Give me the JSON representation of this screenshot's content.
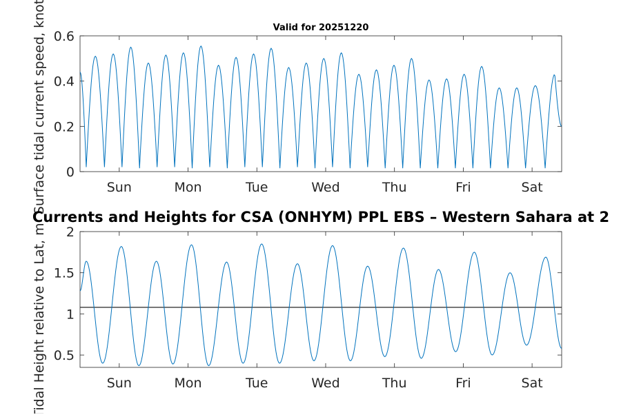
{
  "charts": {
    "valid_title": "Valid for 20251220",
    "main_title": "Currents and Heights for CSA (ONHYM) PPL EBS  – Western Sahara at 2",
    "colors": {
      "series": "#0072BD",
      "reference": "#262626",
      "axes": "#262626"
    }
  },
  "chart_data": [
    {
      "type": "line",
      "title": "Valid for 20251220",
      "ylabel": "Surface tidal current speed, knots",
      "xlabel": "",
      "x_unit": "days",
      "xlim": [
        0,
        7
      ],
      "ylim": [
        0,
        0.6
      ],
      "yticks": [
        0,
        0.2,
        0.4,
        0.6
      ],
      "ytick_labels": [
        "0",
        "0.2",
        "0.4",
        "0.6"
      ],
      "xticks": [
        0.57,
        1.57,
        2.57,
        3.57,
        4.57,
        5.57,
        6.57
      ],
      "xtick_labels": [
        "Sun",
        "Mon",
        "Tue",
        "Wed",
        "Thu",
        "Fri",
        "Sat"
      ],
      "series": [
        {
          "name": "Surface tidal current speed",
          "peaks": [
            {
              "t": 0.225,
              "v": 0.51
            },
            {
              "t": 0.48,
              "v": 0.52
            },
            {
              "t": 0.735,
              "v": 0.55
            },
            {
              "t": 0.99,
              "v": 0.48
            },
            {
              "t": 1.245,
              "v": 0.515
            },
            {
              "t": 1.5,
              "v": 0.525
            },
            {
              "t": 1.755,
              "v": 0.555
            },
            {
              "t": 2.01,
              "v": 0.47
            },
            {
              "t": 2.265,
              "v": 0.505
            },
            {
              "t": 2.52,
              "v": 0.52
            },
            {
              "t": 2.775,
              "v": 0.545
            },
            {
              "t": 3.03,
              "v": 0.46
            },
            {
              "t": 3.285,
              "v": 0.48
            },
            {
              "t": 3.54,
              "v": 0.5
            },
            {
              "t": 3.795,
              "v": 0.525
            },
            {
              "t": 4.05,
              "v": 0.43
            },
            {
              "t": 4.305,
              "v": 0.45
            },
            {
              "t": 4.56,
              "v": 0.47
            },
            {
              "t": 4.815,
              "v": 0.5
            },
            {
              "t": 5.07,
              "v": 0.405
            },
            {
              "t": 5.325,
              "v": 0.41
            },
            {
              "t": 5.58,
              "v": 0.43
            },
            {
              "t": 5.835,
              "v": 0.465
            },
            {
              "t": 6.09,
              "v": 0.37
            },
            {
              "t": 6.345,
              "v": 0.37
            },
            {
              "t": 6.6,
              "v": 0.38
            },
            {
              "t": 6.9,
              "v": 0.43
            }
          ],
          "troughs": [
            {
              "t": 0.09,
              "v": 0.02
            },
            {
              "t": 0.355,
              "v": 0.02
            },
            {
              "t": 0.61,
              "v": 0.015
            },
            {
              "t": 0.865,
              "v": 0.02
            },
            {
              "t": 1.12,
              "v": 0.02
            },
            {
              "t": 1.375,
              "v": 0.015
            },
            {
              "t": 1.63,
              "v": 0.02
            },
            {
              "t": 1.885,
              "v": 0.015
            },
            {
              "t": 2.14,
              "v": 0.02
            },
            {
              "t": 2.395,
              "v": 0.02
            },
            {
              "t": 2.65,
              "v": 0.015
            },
            {
              "t": 2.905,
              "v": 0.02
            },
            {
              "t": 3.16,
              "v": 0.015
            },
            {
              "t": 3.415,
              "v": 0.02
            },
            {
              "t": 3.67,
              "v": 0.015
            },
            {
              "t": 3.925,
              "v": 0.02
            },
            {
              "t": 4.18,
              "v": 0.015
            },
            {
              "t": 4.435,
              "v": 0.015
            },
            {
              "t": 4.69,
              "v": 0.015
            },
            {
              "t": 4.945,
              "v": 0.015
            },
            {
              "t": 5.2,
              "v": 0.015
            },
            {
              "t": 5.455,
              "v": 0.015
            },
            {
              "t": 5.71,
              "v": 0.015
            },
            {
              "t": 5.965,
              "v": 0.015
            },
            {
              "t": 6.22,
              "v": 0.015
            },
            {
              "t": 6.475,
              "v": 0.015
            },
            {
              "t": 6.76,
              "v": 0.015
            }
          ],
          "start_value": 0.44,
          "end_value": 0.2
        }
      ]
    },
    {
      "type": "line",
      "title": "Currents and Heights for CSA (ONHYM) PPL EBS  – Western Sahara at 2",
      "ylabel": "Tidal Height relative to Lat, m",
      "xlabel": "",
      "x_unit": "days",
      "xlim": [
        0,
        7
      ],
      "ylim": [
        0.35,
        2.0
      ],
      "yticks": [
        0.5,
        1.0,
        1.5,
        2.0
      ],
      "ytick_labels": [
        "0.5",
        "1",
        "1.5",
        "2"
      ],
      "xticks": [
        0.57,
        1.57,
        2.57,
        3.57,
        4.57,
        5.57,
        6.57
      ],
      "xtick_labels": [
        "Sun",
        "Mon",
        "Tue",
        "Wed",
        "Thu",
        "Fri",
        "Sat"
      ],
      "reference_line": 1.08,
      "series": [
        {
          "name": "Tidal height",
          "extrema": [
            {
              "t": 0.0,
              "v": 1.28
            },
            {
              "t": 0.09,
              "v": 1.64
            },
            {
              "t": 0.33,
              "v": 0.4
            },
            {
              "t": 0.6,
              "v": 1.82
            },
            {
              "t": 0.855,
              "v": 0.37
            },
            {
              "t": 1.11,
              "v": 1.64
            },
            {
              "t": 1.35,
              "v": 0.39
            },
            {
              "t": 1.62,
              "v": 1.84
            },
            {
              "t": 1.87,
              "v": 0.37
            },
            {
              "t": 2.13,
              "v": 1.63
            },
            {
              "t": 2.37,
              "v": 0.4
            },
            {
              "t": 2.64,
              "v": 1.85
            },
            {
              "t": 2.9,
              "v": 0.4
            },
            {
              "t": 3.16,
              "v": 1.61
            },
            {
              "t": 3.4,
              "v": 0.43
            },
            {
              "t": 3.67,
              "v": 1.83
            },
            {
              "t": 3.93,
              "v": 0.43
            },
            {
              "t": 4.18,
              "v": 1.58
            },
            {
              "t": 4.43,
              "v": 0.48
            },
            {
              "t": 4.7,
              "v": 1.8
            },
            {
              "t": 4.96,
              "v": 0.46
            },
            {
              "t": 5.21,
              "v": 1.54
            },
            {
              "t": 5.46,
              "v": 0.54
            },
            {
              "t": 5.73,
              "v": 1.75
            },
            {
              "t": 5.99,
              "v": 0.5
            },
            {
              "t": 6.25,
              "v": 1.5
            },
            {
              "t": 6.49,
              "v": 0.62
            },
            {
              "t": 6.77,
              "v": 1.69
            },
            {
              "t": 7.0,
              "v": 0.58
            }
          ]
        }
      ]
    }
  ]
}
